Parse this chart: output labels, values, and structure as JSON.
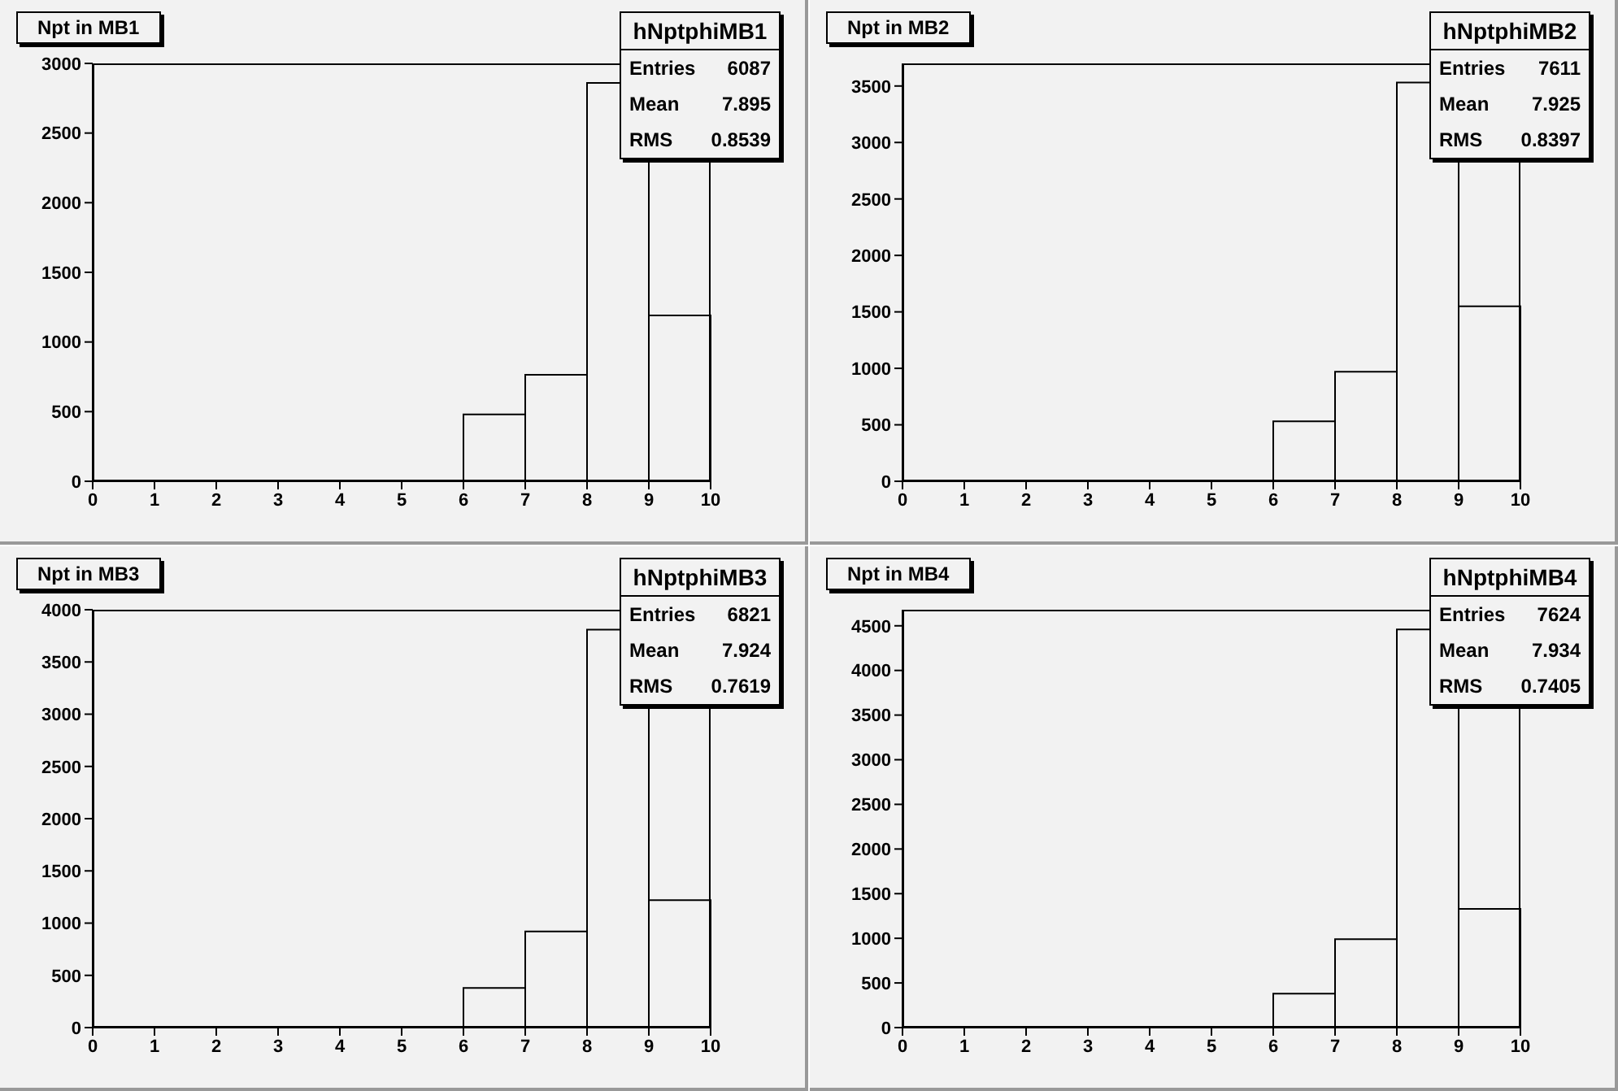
{
  "chart_data": [
    {
      "type": "histogram",
      "title": "Npt in MB1",
      "annotations": [
        "hNptphiMB1",
        "Entries 6087",
        "Mean 7.895",
        "RMS 0.8539"
      ],
      "bins": [
        0,
        1,
        2,
        3,
        4,
        5,
        6,
        7,
        8,
        9,
        10
      ],
      "values": [
        0,
        0,
        0,
        0,
        0,
        0,
        480,
        765,
        2860,
        1190
      ],
      "color": "#000000",
      "xlim": [
        0,
        10
      ],
      "xticks": [
        0,
        1,
        2,
        3,
        4,
        5,
        6,
        7,
        8,
        9,
        10
      ],
      "ylim": [
        0,
        3000
      ],
      "yticks": [
        0,
        500,
        1000,
        1500,
        2000,
        2500,
        3000
      ]
    },
    {
      "type": "histogram",
      "title": "Npt in MB2",
      "annotations": [
        "hNptphiMB2",
        "Entries 7611",
        "Mean 7.925",
        "RMS 0.8397"
      ],
      "bins": [
        0,
        1,
        2,
        3,
        4,
        5,
        6,
        7,
        8,
        9,
        10
      ],
      "values": [
        0,
        0,
        0,
        0,
        0,
        0,
        530,
        970,
        3530,
        1550
      ],
      "color": "#000000",
      "xlim": [
        0,
        10
      ],
      "xticks": [
        0,
        1,
        2,
        3,
        4,
        5,
        6,
        7,
        8,
        9,
        10
      ],
      "ylim": [
        0,
        3700
      ],
      "yticks": [
        0,
        500,
        1000,
        1500,
        2000,
        2500,
        3000,
        3500
      ]
    },
    {
      "type": "histogram",
      "title": "Npt in MB3",
      "annotations": [
        "hNptphiMB3",
        "Entries 6821",
        "Mean 7.924",
        "RMS 0.7619"
      ],
      "bins": [
        0,
        1,
        2,
        3,
        4,
        5,
        6,
        7,
        8,
        9,
        10
      ],
      "values": [
        0,
        0,
        0,
        0,
        0,
        0,
        380,
        920,
        3810,
        1220
      ],
      "color": "#000000",
      "xlim": [
        0,
        10
      ],
      "xticks": [
        0,
        1,
        2,
        3,
        4,
        5,
        6,
        7,
        8,
        9,
        10
      ],
      "ylim": [
        0,
        4000
      ],
      "yticks": [
        0,
        500,
        1000,
        1500,
        2000,
        2500,
        3000,
        3500,
        4000
      ]
    },
    {
      "type": "histogram",
      "title": "Npt in MB4",
      "annotations": [
        "hNptphiMB4",
        "Entries 7624",
        "Mean 7.934",
        "RMS 0.7405"
      ],
      "bins": [
        0,
        1,
        2,
        3,
        4,
        5,
        6,
        7,
        8,
        9,
        10
      ],
      "values": [
        0,
        0,
        0,
        0,
        0,
        0,
        380,
        990,
        4460,
        1330
      ],
      "color": "#000000",
      "xlim": [
        0,
        10
      ],
      "xticks": [
        0,
        1,
        2,
        3,
        4,
        5,
        6,
        7,
        8,
        9,
        10
      ],
      "ylim": [
        0,
        4680
      ],
      "yticks": [
        0,
        500,
        1000,
        1500,
        2000,
        2500,
        3000,
        3500,
        4000,
        4500
      ]
    }
  ]
}
